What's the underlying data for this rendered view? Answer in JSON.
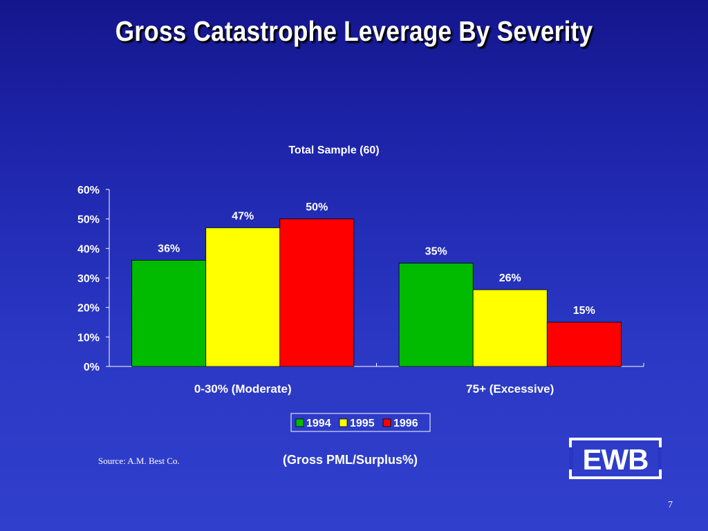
{
  "slide": {
    "title": "Gross Catastrophe Leverage By Severity",
    "source": "Source: A.M. Best Co.",
    "subtitle": "(Gross PML/Surplus%)",
    "logo_text": "EWB",
    "page_number": "7"
  },
  "chart_data": {
    "type": "bar",
    "title": "Total Sample (60)",
    "categories": [
      "0-30% (Moderate)",
      "75+ (Excessive)"
    ],
    "series": [
      {
        "name": "1994",
        "values": [
          36,
          35
        ],
        "color": "#00bb00"
      },
      {
        "name": "1995",
        "values": [
          47,
          26
        ],
        "color": "#ffff00"
      },
      {
        "name": "1996",
        "values": [
          50,
          15
        ],
        "color": "#ff0000"
      }
    ],
    "data_labels": [
      [
        "36%",
        "35%"
      ],
      [
        "47%",
        "26%"
      ],
      [
        "50%",
        "15%"
      ]
    ],
    "ylim": [
      0,
      60
    ],
    "yticks": [
      0,
      10,
      20,
      30,
      40,
      50,
      60
    ],
    "ytick_labels": [
      "0%",
      "10%",
      "20%",
      "30%",
      "40%",
      "50%",
      "60%"
    ],
    "xlabel": "",
    "ylabel": "",
    "grid": false,
    "legend_position": "bottom-center"
  }
}
